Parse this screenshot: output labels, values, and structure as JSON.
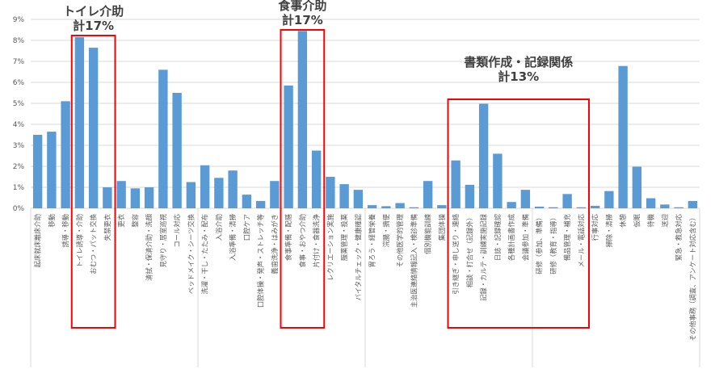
{
  "chart_data": {
    "type": "bar",
    "title": "",
    "xlabel": "",
    "ylabel": "",
    "ylim": [
      0,
      9
    ],
    "y_ticks": [
      "0%",
      "1%",
      "2%",
      "3%",
      "4%",
      "5%",
      "6%",
      "7%",
      "8%",
      "9%"
    ],
    "grid": true,
    "categories": [
      "起床就床離床介助",
      "移動",
      "誘導・移動",
      "トイレ誘導・介助",
      "おむつ・パット交換",
      "失禁更衣",
      "更衣",
      "整容",
      "清拭・保清介助・洗顔",
      "見守り・居室巡視",
      "コール対応",
      "ベッドメイク・シーツ交換",
      "洗濯・干し・たたみ・配布",
      "入浴介助",
      "入浴準備・清掃",
      "口腔ケア",
      "口腔体操・発声・ストレッチ等",
      "義歯洗浄・はみがき",
      "食事準備・配膳",
      "食事・おやつ介助",
      "片付け・食器洗浄",
      "レクリエーション実施",
      "服薬管理・投薬",
      "バイタルチェック・健康確認",
      "胃ろう・経管栄養",
      "浣腸・摘便",
      "その他医学的管理",
      "主治医連絡情報記入・検診準備",
      "個別機能訓練",
      "集団体操",
      "引き継ぎ・申し送り・連絡",
      "相談・打合せ（記録外）",
      "記録・カルテ・訓練実施記録",
      "日誌・記録確認",
      "各種計画書作成",
      "会議参加・準備",
      "研修（参加、準備）",
      "研修（教育・指導）",
      "備品管理・補充",
      "メール・電話対応",
      "行事対応",
      "掃除・清掃",
      "休憩",
      "仮眠",
      "待機",
      "送迎",
      "緊急・救急対応",
      "その他事務（調査、アンケート対応含む）"
    ],
    "values": [
      3.5,
      3.65,
      5.1,
      8.15,
      7.65,
      1.0,
      1.3,
      0.95,
      1.0,
      6.6,
      5.5,
      1.25,
      2.05,
      1.45,
      1.8,
      0.65,
      0.35,
      1.3,
      5.85,
      8.45,
      2.75,
      1.5,
      1.15,
      0.88,
      0.15,
      0.1,
      0.25,
      0.05,
      1.3,
      0.15,
      2.28,
      1.12,
      4.98,
      2.6,
      0.3,
      0.88,
      0.08,
      0.05,
      0.68,
      0.05,
      0.12,
      0.82,
      6.78,
      1.98,
      0.48,
      0.18,
      0.05,
      0.35
    ],
    "annotations": [
      {
        "lines": [
          "トイレ介助",
          "計17%"
        ],
        "from": 3,
        "to": 5
      },
      {
        "lines": [
          "食事介助",
          "計17%"
        ],
        "from": 18,
        "to": 20
      },
      {
        "lines": [
          "書類作成・記録関係",
          "計13%"
        ],
        "from": 30,
        "to": 39
      }
    ]
  },
  "colors": {
    "bar": "#5b9bd5",
    "highlight": "#ff0000"
  }
}
